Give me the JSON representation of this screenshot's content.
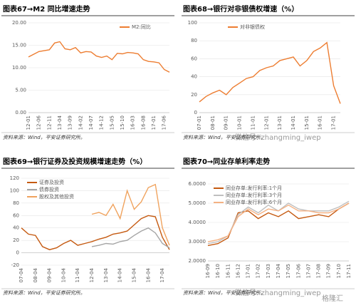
{
  "chart_data": [
    {
      "type": "line",
      "title": "图表67→M2 同比增速走势",
      "source": "资料来源：Wind，平安证券研究所。",
      "categories": [
        "12-01",
        null,
        "12-06",
        null,
        "12-11",
        null,
        "13-04",
        null,
        "13-09",
        null,
        "14-02",
        null,
        "14-07",
        null,
        "14-12",
        null,
        "15-05",
        null,
        "15-10",
        null,
        "16-03",
        null,
        "16-08",
        null,
        "17-01",
        null,
        "17-06",
        null
      ],
      "series": [
        {
          "name": "M2:同比",
          "color": "#ED7D31",
          "values": [
            12.4,
            13.0,
            13.6,
            13.8,
            14.0,
            15.5,
            15.8,
            14.2,
            14.0,
            14.5,
            13.3,
            13.6,
            13.5,
            12.6,
            12.3,
            12.6,
            11.8,
            13.2,
            13.1,
            13.4,
            13.3,
            13.1,
            11.8,
            11.4,
            11.3,
            11.1,
            9.6,
            9.0
          ]
        }
      ],
      "ylim": [
        0,
        20
      ],
      "yticks": [
        {
          "value": 0,
          "label": "0.00"
        },
        {
          "value": 5,
          "label": "5.00"
        },
        {
          "value": 10,
          "label": "10.00"
        },
        {
          "value": 15,
          "label": "15.00"
        },
        {
          "value": 20,
          "label": "20.00"
        }
      ],
      "legend": "upper right"
    },
    {
      "type": "line",
      "title": "图表68→银行对非银债权增速（%）",
      "source": "资料来源：Wind，平安证券研究所。",
      "categories": [
        "07-01",
        null,
        "08-01",
        null,
        "09-01",
        null,
        "10-01",
        null,
        "11-01",
        null,
        "12-01",
        null,
        "13-01",
        null,
        "14-01",
        null,
        "15-01",
        null,
        "16-01",
        null,
        "17-01",
        null
      ],
      "series": [
        {
          "name": "对非银债权",
          "color": "#ED7D31",
          "values": [
            12,
            18,
            22,
            25,
            20,
            28,
            33,
            38,
            40,
            47,
            50,
            52,
            58,
            60,
            62,
            52,
            58,
            68,
            72,
            78,
            30,
            10
          ]
        }
      ],
      "ylim": [
        0,
        100
      ],
      "yticks": [
        0,
        20,
        40,
        60,
        80,
        100
      ],
      "legend": "upper left"
    },
    {
      "type": "line",
      "title": "图表69→银行证券及投资规模增速走势（%）",
      "source": "资料来源：Wind，平安证券研究所。",
      "categories": [
        "07-04",
        null,
        "08-04",
        null,
        "09-04",
        null,
        "10-04",
        null,
        "11-04",
        null,
        "12-04",
        null,
        "13-04",
        null,
        "14-04",
        null,
        "15-04",
        null,
        "16-04",
        null,
        "17-04",
        null
      ],
      "series": [
        {
          "name": "证券及投资",
          "color": "#C55A11",
          "values": [
            40,
            30,
            28,
            10,
            5,
            8,
            15,
            20,
            12,
            15,
            18,
            22,
            25,
            30,
            32,
            35,
            45,
            55,
            60,
            58,
            25,
            5
          ]
        },
        {
          "name": "债券投资",
          "color": "#A5A5A5",
          "values": [
            null,
            null,
            null,
            null,
            null,
            null,
            null,
            null,
            null,
            null,
            10,
            12,
            15,
            14,
            18,
            20,
            28,
            35,
            40,
            32,
            15,
            8
          ]
        },
        {
          "name": "股权及其他投资",
          "color": "#F0A35E",
          "values": [
            null,
            null,
            null,
            null,
            null,
            null,
            null,
            null,
            null,
            null,
            62,
            65,
            60,
            78,
            55,
            100,
            70,
            82,
            105,
            110,
            40,
            12
          ]
        }
      ],
      "ylim": [
        -20,
        120
      ],
      "yticks": [
        -20,
        0,
        20,
        40,
        60,
        80,
        100,
        120
      ],
      "legend": "upper left"
    },
    {
      "type": "line",
      "title": "图表70→同业存单利率走势",
      "source": "资料来源：Wind，平安证券研究所。",
      "categories": [
        "16-09",
        "16-10",
        "16-11",
        "16-12",
        "17-01",
        "17-02",
        "17-03",
        "17-04",
        "17-05",
        "17-06",
        "17-07",
        "17-08",
        "17-09",
        "17-10",
        "17-11"
      ],
      "series": [
        {
          "name": "同业存单:发行利率:1个月",
          "color": "#C55A11",
          "values": [
            2.8,
            2.9,
            3.2,
            4.5,
            4.6,
            4.2,
            4.5,
            4.3,
            4.6,
            4.2,
            4.3,
            4.4,
            4.3,
            4.7,
            5.0
          ]
        },
        {
          "name": "同业存单:发行利率:3个月",
          "color": "#BFBFBF",
          "values": [
            2.9,
            3.0,
            3.3,
            4.4,
            4.8,
            4.5,
            4.9,
            4.6,
            5.0,
            4.7,
            4.6,
            4.6,
            4.6,
            4.8,
            5.1
          ]
        },
        {
          "name": "同业存单:发行利率:6个月",
          "color": "#F4B183",
          "values": [
            3.0,
            3.1,
            3.3,
            4.3,
            4.7,
            4.4,
            4.7,
            4.6,
            4.9,
            4.6,
            4.6,
            4.5,
            4.5,
            4.7,
            5.0
          ]
        }
      ],
      "ylim": [
        2,
        6
      ],
      "yticks": [
        {
          "value": 2,
          "label": "2.0000"
        },
        {
          "value": 3,
          "label": "3.0000"
        },
        {
          "value": 4,
          "label": "4.0000"
        },
        {
          "value": 5,
          "label": "5.0000"
        },
        {
          "value": 6,
          "label": "6.0000"
        }
      ],
      "legend": "upper left"
    }
  ],
  "watermarks": [
    "微信号: zhangming_iwep",
    "微信号: zhangming_iwep",
    "格隆汇"
  ]
}
